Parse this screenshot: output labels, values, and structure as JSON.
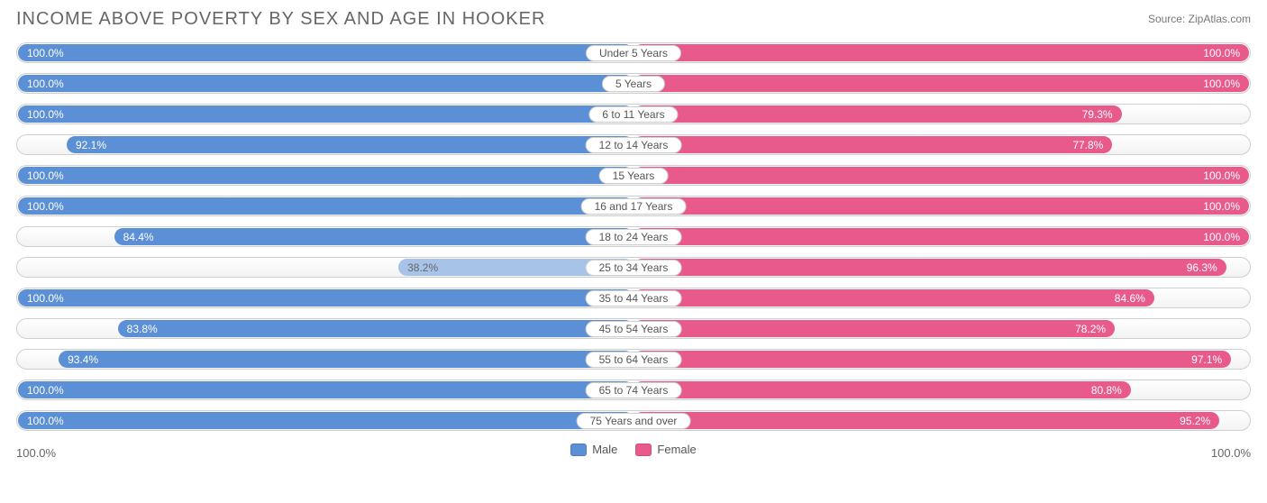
{
  "title": "INCOME ABOVE POVERTY BY SEX AND AGE IN HOOKER",
  "source": "Source: ZipAtlas.com",
  "colors": {
    "male_solid": "#5b8fd6",
    "male_low": "#a8c3e8",
    "female_solid": "#e85a8b",
    "female_low": "#f4a6c0",
    "track_border": "#cfcfcf",
    "track_bg_top": "#ffffff",
    "track_bg_bot": "#f3f3f3",
    "text_title": "#666666",
    "text_label": "#555555",
    "text_source": "#777777",
    "bar_text": "#ffffff",
    "low_bar_text": "#666666"
  },
  "low_threshold": 50.0,
  "legend": {
    "male": "Male",
    "female": "Female"
  },
  "axis": {
    "left": "100.0%",
    "right": "100.0%"
  },
  "rows": [
    {
      "category": "Under 5 Years",
      "male": 100.0,
      "female": 100.0
    },
    {
      "category": "5 Years",
      "male": 100.0,
      "female": 100.0
    },
    {
      "category": "6 to 11 Years",
      "male": 100.0,
      "female": 79.3
    },
    {
      "category": "12 to 14 Years",
      "male": 92.1,
      "female": 77.8
    },
    {
      "category": "15 Years",
      "male": 100.0,
      "female": 100.0
    },
    {
      "category": "16 and 17 Years",
      "male": 100.0,
      "female": 100.0
    },
    {
      "category": "18 to 24 Years",
      "male": 84.4,
      "female": 100.0
    },
    {
      "category": "25 to 34 Years",
      "male": 38.2,
      "female": 96.3
    },
    {
      "category": "35 to 44 Years",
      "male": 100.0,
      "female": 84.6
    },
    {
      "category": "45 to 54 Years",
      "male": 83.8,
      "female": 78.2
    },
    {
      "category": "55 to 64 Years",
      "male": 93.4,
      "female": 97.1
    },
    {
      "category": "65 to 74 Years",
      "male": 100.0,
      "female": 80.8
    },
    {
      "category": "75 Years and over",
      "male": 100.0,
      "female": 95.2
    }
  ],
  "font": {
    "title_size": 20,
    "label_size": 12,
    "axis_size": 13
  }
}
